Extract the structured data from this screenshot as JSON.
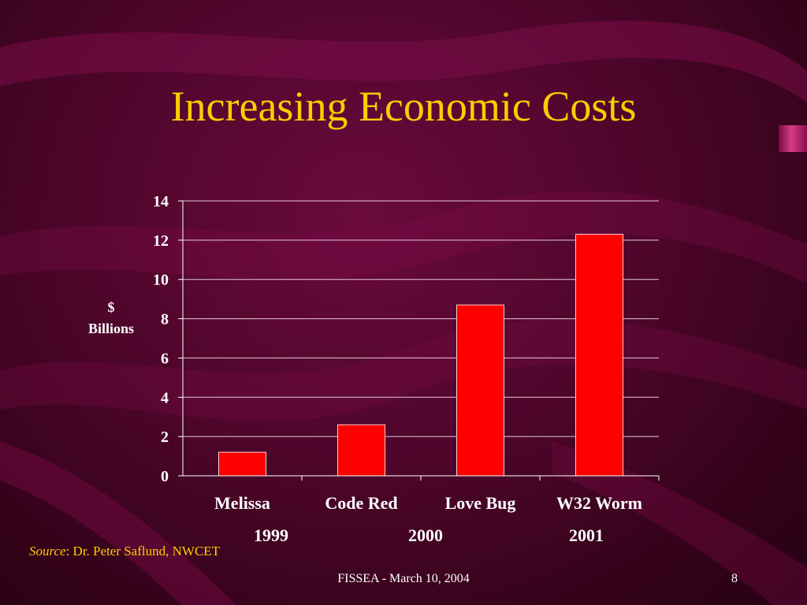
{
  "slide": {
    "title": "Increasing Economic Costs",
    "source_label": "Source",
    "source_text": ": Dr. Peter Saflund, NWCET",
    "footer": "FISSEA - March 10, 2004",
    "page_number": "8"
  },
  "colors": {
    "background": "#4e062b",
    "title": "#ffcc00",
    "bars": "#ff0000",
    "text": "#ffffff"
  },
  "chart_data": {
    "type": "bar",
    "categories": [
      "Melissa",
      "Code Red",
      "Love Bug",
      "W32 Worm"
    ],
    "values": [
      1.2,
      2.6,
      8.7,
      12.3
    ],
    "year_labels": [
      "1999",
      "2000",
      "2001"
    ],
    "ylabel_line1": "$",
    "ylabel_line2": "Billions",
    "ylim": [
      0,
      14
    ],
    "yticks": [
      0,
      2,
      4,
      6,
      8,
      10,
      12,
      14
    ],
    "grid": true,
    "legend": "none"
  }
}
